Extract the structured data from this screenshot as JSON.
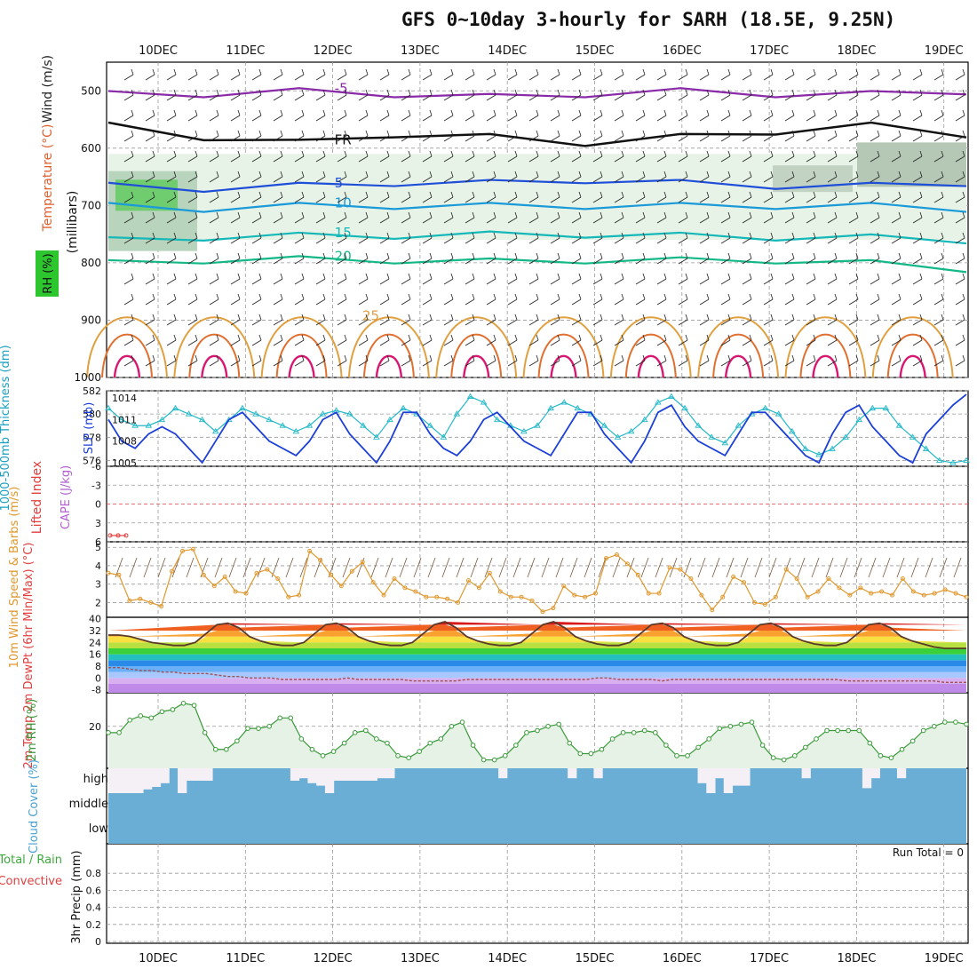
{
  "title": "GFS 0~10day 3-hourly for SARH (18.5E, 9.25N)",
  "colors": {
    "grid": "#999999",
    "slp": "#1b3fd8",
    "thick": "#23b8c8",
    "wind10": "#e0982f",
    "rh": "#3a9a3a",
    "rhfill": "#e6f2e6",
    "cloud": "#6aaed6",
    "cloudblank": "#f4f0f6",
    "li": "#e23a3a",
    "t2m": "#5a3a2a",
    "dewpt": "#a05050"
  },
  "chart_data": [
    {
      "type": "line",
      "panel": "upper-air",
      "x_dates": [
        "10DEC",
        "11DEC",
        "12DEC",
        "13DEC",
        "14DEC",
        "15DEC",
        "16DEC",
        "17DEC",
        "18DEC",
        "19DEC"
      ],
      "ylabel": "(millibars)",
      "side_labels": [
        "Wind (m/s)",
        "Temperature (°C)",
        "RH (%)"
      ],
      "y_ticks": [
        "500",
        "600",
        "700",
        "800",
        "900",
        "1000"
      ],
      "ylim": [
        1000,
        450
      ],
      "temperature_contour_labels": [
        "-5",
        "-5",
        "FR",
        "FR",
        "FR",
        "5",
        "5",
        "10",
        "10",
        "15",
        "20",
        "25"
      ],
      "series": [
        {
          "name": "-5",
          "values": [
            505,
            505,
            500,
            505,
            510,
            505,
            500,
            505,
            505,
            500
          ]
        },
        {
          "name": "FR",
          "values": [
            560,
            580,
            590,
            575,
            580,
            590,
            580,
            570,
            560,
            575
          ]
        },
        {
          "name": "5",
          "values": [
            665,
            670,
            665,
            660,
            660,
            655,
            660,
            665,
            665,
            660
          ]
        },
        {
          "name": "10",
          "values": [
            700,
            705,
            700,
            700,
            700,
            700,
            700,
            700,
            700,
            705
          ]
        },
        {
          "name": "15",
          "values": [
            760,
            755,
            752,
            752,
            750,
            750,
            752,
            755,
            755,
            760
          ]
        },
        {
          "name": "20",
          "values": [
            800,
            795,
            793,
            795,
            797,
            795,
            795,
            795,
            800,
            810
          ]
        }
      ]
    },
    {
      "type": "line",
      "panel": "thickness-slp",
      "ylabel_left": "1000-500mb Thickness (dm)",
      "ylabel_right": "SLP (mb)",
      "left_ticks": [
        "576",
        "578",
        "580",
        "582"
      ],
      "right_ticks": [
        "1005",
        "1008",
        "1011",
        "1014"
      ],
      "left_ylim": [
        575.5,
        582
      ],
      "right_ylim": [
        1004.5,
        1015
      ],
      "series": [
        {
          "name": "Thickness",
          "axis": "left",
          "values": [
            580.5,
            579.5,
            579.0,
            579.0,
            579.5,
            580.5,
            580.0,
            579.5,
            578.5,
            579.5,
            580.5,
            580.0,
            579.5,
            579.0,
            578.5,
            579.0,
            580.0,
            580.3,
            580.0,
            579.0,
            578.0,
            579.5,
            580.5,
            580.0,
            579.0,
            578.0,
            580.0,
            581.5,
            581.0,
            579.5,
            579.0,
            578.5,
            579.0,
            580.5,
            581.0,
            580.5,
            580.0,
            579.0,
            578.0,
            578.5,
            579.5,
            581.0,
            581.5,
            580.5,
            579.0,
            578.0,
            577.5,
            579.0,
            580.0,
            580.5,
            580.0,
            578.5,
            577.0,
            576.5,
            577.0,
            578.0,
            579.5,
            580.5,
            580.5,
            579.0,
            578.0,
            577.0,
            576.0,
            575.8,
            576.0
          ]
        },
        {
          "name": "SLP",
          "axis": "right",
          "values": [
            1011,
            1008,
            1007,
            1009,
            1010,
            1009,
            1007,
            1005,
            1008,
            1011,
            1012,
            1010,
            1008,
            1007,
            1006,
            1008,
            1011,
            1012,
            1009,
            1007,
            1005,
            1008,
            1012,
            1012,
            1009,
            1007,
            1006,
            1008,
            1011,
            1012,
            1010,
            1008,
            1007,
            1006,
            1009,
            1012,
            1012,
            1009,
            1007,
            1005,
            1008,
            1012,
            1013,
            1010,
            1008,
            1007,
            1006,
            1009,
            1012,
            1012,
            1010,
            1008,
            1006,
            1005,
            1009,
            1012,
            1013,
            1010,
            1008,
            1006,
            1005,
            1009,
            1011,
            1013,
            1014.5
          ]
        }
      ]
    },
    {
      "type": "line",
      "panel": "stability",
      "ylabel_left": "Lifted Index",
      "ylabel_right": "CAPE (J/kg)",
      "left_ticks": [
        "-6",
        "-3",
        "0",
        "3",
        "6"
      ],
      "ylim": [
        -6,
        6
      ],
      "series": [
        {
          "name": "Lifted Index",
          "values": [
            5.0,
            5.0,
            5.0
          ]
        }
      ]
    },
    {
      "type": "line",
      "panel": "wind10",
      "ylabel": "10m Wind Speed & Barbs (m/s)",
      "ticks": [
        "2",
        "3",
        "4",
        "5"
      ],
      "ylim": [
        1.2,
        5.3
      ],
      "series": [
        {
          "name": "10m Wind Speed",
          "values": [
            3.6,
            3.5,
            2.1,
            2.2,
            2.0,
            1.8,
            3.7,
            4.8,
            4.9,
            3.5,
            2.9,
            3.4,
            2.6,
            2.5,
            3.6,
            3.8,
            3.3,
            2.3,
            2.4,
            4.8,
            4.3,
            3.5,
            2.9,
            3.7,
            4.2,
            3.1,
            2.4,
            3.3,
            2.8,
            2.6,
            2.3,
            2.3,
            2.2,
            2.0,
            3.2,
            2.8,
            3.6,
            2.6,
            2.3,
            2.3,
            2.1,
            1.5,
            1.7,
            2.9,
            2.4,
            2.3,
            2.5,
            4.4,
            4.6,
            4.1,
            3.5,
            2.5,
            2.5,
            3.9,
            3.8,
            3.3,
            2.4,
            1.6,
            2.3,
            3.4,
            3.1,
            2.0,
            1.9,
            2.3,
            3.8,
            3.3,
            2.3,
            2.6,
            3.3,
            2.8,
            2.4,
            2.8,
            2.5,
            2.6,
            2.4,
            3.3,
            2.6,
            2.4,
            2.5,
            2.7,
            2.5,
            2.3
          ]
        }
      ]
    },
    {
      "type": "line",
      "panel": "temperature",
      "ylabel": "2m Temp 2m DewPt (6hr Min/Max) (°C)",
      "ticks": [
        "-8",
        "0",
        "8",
        "16",
        "24",
        "32",
        "40"
      ],
      "ylim": [
        -10,
        41
      ],
      "series": [
        {
          "name": "2m Temp",
          "values": [
            29,
            29,
            28,
            26,
            24,
            23,
            22,
            22,
            24,
            30,
            36,
            37,
            34,
            28,
            25,
            23,
            22,
            22,
            24,
            30,
            36,
            37,
            34,
            28,
            25,
            23,
            22,
            22,
            24,
            30,
            36,
            38,
            34,
            28,
            25,
            23,
            22,
            22,
            24,
            30,
            36,
            38,
            34,
            28,
            25,
            23,
            22,
            22,
            24,
            30,
            36,
            37,
            34,
            28,
            25,
            23,
            22,
            22,
            24,
            30,
            36,
            37,
            34,
            28,
            25,
            23,
            22,
            22,
            24,
            30,
            36,
            37,
            34,
            28,
            25,
            23,
            21,
            20,
            20,
            20
          ]
        },
        {
          "name": "2m DewPt",
          "values": [
            7,
            7,
            6,
            5,
            5,
            4,
            4,
            3,
            3,
            3,
            2,
            1,
            1,
            0,
            0,
            0,
            -1,
            -1,
            -1,
            -1,
            -1,
            -1,
            0,
            -1,
            -1,
            -1,
            -1,
            -1,
            -2,
            -2,
            -2,
            -2,
            -2,
            -1,
            -1,
            -1,
            -1,
            -1,
            -1,
            -1,
            -1,
            -1,
            -1,
            -1,
            -1,
            0,
            0,
            -1,
            -1,
            -1,
            -1,
            -2,
            -1,
            -1,
            -1,
            -1,
            -1,
            -1,
            -1,
            -1,
            -1,
            -1,
            -1,
            -1,
            -1,
            -1,
            -1,
            -1,
            -2,
            -2,
            -2,
            -2,
            -2,
            -2,
            -2,
            -2,
            -2,
            -3,
            -3,
            -3
          ]
        }
      ]
    },
    {
      "type": "area",
      "panel": "rh",
      "ylabel": "2m RH (%)",
      "ticks": [
        "20"
      ],
      "ylim": [
        0,
        36
      ],
      "series": [
        {
          "name": "2m RH",
          "values": [
            17,
            17,
            23,
            25,
            24,
            27,
            28,
            31,
            30,
            17,
            9,
            9,
            13,
            19,
            19,
            20,
            24,
            24,
            14,
            9,
            6,
            8,
            12,
            17,
            18,
            14,
            12,
            6,
            5,
            8,
            12,
            14,
            20,
            22,
            11,
            4,
            4,
            6,
            11,
            17,
            18,
            20,
            21,
            12,
            7,
            7,
            9,
            14,
            17,
            17,
            18,
            17,
            11,
            6,
            6,
            10,
            14,
            19,
            20,
            21,
            22,
            11,
            5,
            4,
            6,
            10,
            14,
            18,
            18,
            18,
            18,
            12,
            6,
            5,
            9,
            13,
            18,
            20,
            22,
            22,
            21
          ]
        }
      ]
    },
    {
      "type": "bar",
      "panel": "cloud",
      "ylabel": "Cloud Cover (%)",
      "levels": [
        "high",
        "middle",
        "low"
      ],
      "series": [
        {
          "name": "high",
          "values": [
            100,
            100,
            100,
            100,
            85,
            75,
            60,
            0,
            100,
            50,
            50,
            50,
            0,
            0,
            0,
            0,
            0,
            0,
            0,
            0,
            0,
            50,
            40,
            60,
            70,
            100,
            50,
            50,
            50,
            50,
            50,
            40,
            40,
            0,
            0,
            0,
            0,
            0,
            0,
            0,
            0,
            0,
            0,
            0,
            0,
            40,
            0,
            0,
            0,
            0,
            0,
            0,
            0,
            40,
            0,
            0,
            40,
            0,
            0,
            0,
            0,
            0,
            0,
            0,
            0,
            0,
            0,
            0,
            60,
            100,
            40,
            100,
            70,
            70,
            0,
            0,
            0,
            0,
            0,
            0,
            40,
            0,
            0,
            0,
            0,
            0,
            0,
            80,
            40,
            0,
            0,
            40,
            0,
            0,
            0,
            0,
            0,
            0,
            0
          ]
        }
      ]
    },
    {
      "type": "bar",
      "panel": "precip",
      "ylabel_left": "Total / Rain Convective",
      "ylabel": "3hr Precip (mm)",
      "ticks": [
        "0",
        "0.2",
        "0.4",
        "0.6",
        "0.8"
      ],
      "ylim": [
        0,
        1
      ],
      "run_total_label": "Run Total = 0",
      "series": [
        {
          "name": "Total / Rain",
          "values": [
            0,
            0,
            0,
            0,
            0,
            0,
            0,
            0,
            0,
            0
          ]
        },
        {
          "name": "Convective",
          "values": [
            0,
            0,
            0,
            0,
            0,
            0,
            0,
            0,
            0,
            0
          ]
        }
      ]
    }
  ]
}
